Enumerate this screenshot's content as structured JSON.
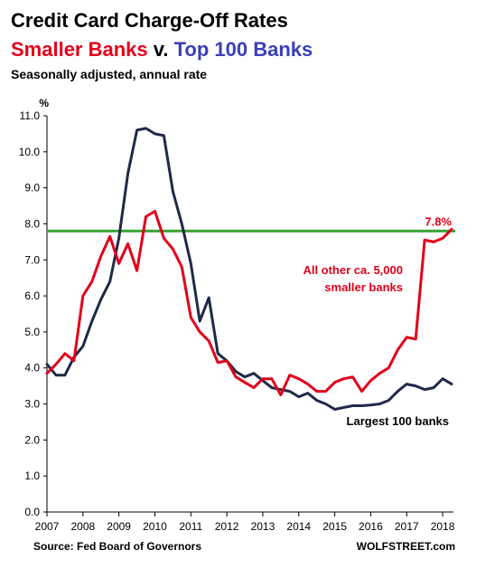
{
  "header": {
    "title": "Credit Card Charge-Off Rates",
    "subtitle_a": "Smaller Banks",
    "subtitle_v": " v. ",
    "subtitle_b": "Top 100 Banks",
    "note": "Seasonally adjusted, annual rate"
  },
  "footer": {
    "source": "Source: Fed Board of Governors",
    "brand": "WOLFSTREET.com"
  },
  "colors": {
    "smaller": "#e2001a",
    "largest": "#1f2a48",
    "reference": "#3aa535",
    "blue_text": "#3a3fb8"
  },
  "chart_data": {
    "type": "line",
    "ylabel": "%",
    "xlim": [
      2007,
      2018.3
    ],
    "ylim": [
      0,
      11
    ],
    "yticks": [
      "0.0",
      "1.0",
      "2.0",
      "3.0",
      "4.0",
      "5.0",
      "6.0",
      "7.0",
      "8.0",
      "9.0",
      "10.0",
      "11.0"
    ],
    "xticks": [
      "2007",
      "2008",
      "2009",
      "2010",
      "2011",
      "2012",
      "2013",
      "2014",
      "2015",
      "2016",
      "2017",
      "2018"
    ],
    "grid": false,
    "reference_line": {
      "value": 7.8,
      "label": "7.8%"
    },
    "annotations": [
      {
        "text": "All other ca. 5,000",
        "series": "smaller"
      },
      {
        "text": "smaller banks",
        "series": "smaller"
      },
      {
        "text": "Largest 100 banks",
        "series": "largest"
      }
    ],
    "series": [
      {
        "key": "largest",
        "x": [
          2007.0,
          2007.25,
          2007.5,
          2007.75,
          2008.0,
          2008.25,
          2008.5,
          2008.75,
          2009.0,
          2009.25,
          2009.5,
          2009.75,
          2010.0,
          2010.25,
          2010.5,
          2010.75,
          2011.0,
          2011.25,
          2011.5,
          2011.75,
          2012.0,
          2012.25,
          2012.5,
          2012.75,
          2013.0,
          2013.25,
          2013.5,
          2013.75,
          2014.0,
          2014.25,
          2014.5,
          2014.75,
          2015.0,
          2015.25,
          2015.5,
          2015.75,
          2016.0,
          2016.25,
          2016.5,
          2016.75,
          2017.0,
          2017.25,
          2017.5,
          2017.75,
          2018.0,
          2018.25
        ],
        "values": [
          4.1,
          3.8,
          3.8,
          4.3,
          4.6,
          5.3,
          5.9,
          6.4,
          7.6,
          9.4,
          10.6,
          10.65,
          10.5,
          10.45,
          8.9,
          8.0,
          6.9,
          5.3,
          5.95,
          4.4,
          4.2,
          3.9,
          3.75,
          3.85,
          3.65,
          3.45,
          3.4,
          3.35,
          3.2,
          3.3,
          3.1,
          3.0,
          2.85,
          2.9,
          2.95,
          2.95,
          2.97,
          3.0,
          3.1,
          3.35,
          3.55,
          3.5,
          3.4,
          3.45,
          3.7,
          3.55
        ]
      },
      {
        "key": "smaller",
        "x": [
          2007.0,
          2007.25,
          2007.5,
          2007.75,
          2008.0,
          2008.25,
          2008.5,
          2008.75,
          2009.0,
          2009.25,
          2009.5,
          2009.75,
          2010.0,
          2010.25,
          2010.5,
          2010.75,
          2011.0,
          2011.25,
          2011.5,
          2011.75,
          2012.0,
          2012.25,
          2012.5,
          2012.75,
          2013.0,
          2013.25,
          2013.5,
          2013.75,
          2014.0,
          2014.25,
          2014.5,
          2014.75,
          2015.0,
          2015.25,
          2015.5,
          2015.75,
          2016.0,
          2016.25,
          2016.5,
          2016.75,
          2017.0,
          2017.25,
          2017.5,
          2017.75,
          2018.0,
          2018.25
        ],
        "values": [
          3.85,
          4.1,
          4.4,
          4.2,
          6.0,
          6.4,
          7.1,
          7.65,
          6.9,
          7.45,
          6.7,
          8.2,
          8.35,
          7.6,
          7.3,
          6.8,
          5.4,
          5.0,
          4.75,
          4.15,
          4.2,
          3.75,
          3.6,
          3.45,
          3.7,
          3.7,
          3.25,
          3.8,
          3.7,
          3.55,
          3.35,
          3.35,
          3.6,
          3.7,
          3.75,
          3.35,
          3.65,
          3.85,
          4.0,
          4.5,
          4.85,
          4.8,
          7.55,
          7.5,
          7.6,
          7.85
        ]
      }
    ]
  }
}
